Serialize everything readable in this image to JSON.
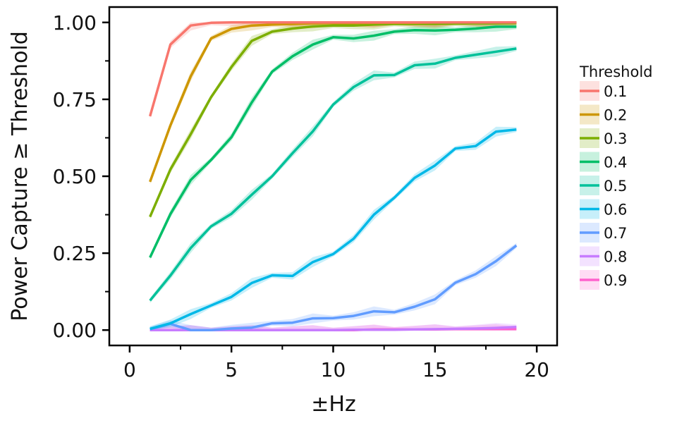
{
  "chart_data": {
    "type": "line",
    "title": "",
    "xlabel": "±Hz",
    "ylabel": "Power Capture  ≥  Threshold",
    "xlim": [
      -1,
      21
    ],
    "ylim": [
      -0.05,
      1.05
    ],
    "x_ticks": [
      0,
      5,
      10,
      15,
      20
    ],
    "x_tick_labels": [
      "0",
      "5",
      "10",
      "15",
      "20"
    ],
    "y_ticks": [
      0,
      0.25,
      0.5,
      0.75,
      1.0
    ],
    "y_tick_labels": [
      "0.00",
      "0.25",
      "0.50",
      "0.75",
      "1.00"
    ],
    "grid": false,
    "legend_title": "Threshold",
    "legend_position": "right",
    "x": [
      1,
      2,
      3,
      4,
      5,
      6,
      7,
      8,
      9,
      10,
      11,
      12,
      13,
      14,
      15,
      16,
      17,
      18,
      19
    ],
    "series": [
      {
        "name": "0.1",
        "color": "#f8766d",
        "values": [
          0.695,
          0.928,
          0.99,
          0.999,
          1.0,
          1.0,
          1.0,
          1.0,
          1.0,
          1.0,
          1.0,
          1.0,
          1.0,
          1.0,
          1.0,
          1.0,
          1.0,
          1.0,
          1.0
        ]
      },
      {
        "name": "0.2",
        "color": "#cd9600",
        "values": [
          0.482,
          0.665,
          0.825,
          0.948,
          0.979,
          0.99,
          0.993,
          0.995,
          0.997,
          0.998,
          0.998,
          0.999,
          0.999,
          0.999,
          1.0,
          1.0,
          1.0,
          1.0,
          1.0
        ]
      },
      {
        "name": "0.3",
        "color": "#7cae00",
        "values": [
          0.368,
          0.522,
          0.637,
          0.757,
          0.855,
          0.94,
          0.97,
          0.98,
          0.987,
          0.99,
          0.99,
          0.993,
          0.995,
          0.995,
          0.995,
          0.996,
          0.997,
          0.997,
          0.998
        ]
      },
      {
        "name": "0.4",
        "color": "#00be67",
        "values": [
          0.236,
          0.377,
          0.488,
          0.553,
          0.627,
          0.74,
          0.84,
          0.89,
          0.928,
          0.952,
          0.948,
          0.957,
          0.97,
          0.975,
          0.974,
          0.976,
          0.98,
          0.986,
          0.986
        ]
      },
      {
        "name": "0.5",
        "color": "#00c19a",
        "values": [
          0.096,
          0.177,
          0.267,
          0.337,
          0.378,
          0.44,
          0.5,
          0.575,
          0.646,
          0.733,
          0.79,
          0.828,
          0.829,
          0.861,
          0.866,
          0.885,
          0.895,
          0.905,
          0.915
        ]
      },
      {
        "name": "0.6",
        "color": "#00b8e7",
        "values": [
          0.004,
          0.022,
          0.052,
          0.08,
          0.108,
          0.153,
          0.178,
          0.176,
          0.221,
          0.247,
          0.297,
          0.375,
          0.43,
          0.495,
          0.535,
          0.59,
          0.598,
          0.645,
          0.652
        ]
      },
      {
        "name": "0.7",
        "color": "#619cff",
        "values": [
          0.003,
          0.02,
          0.0,
          0.0,
          0.005,
          0.008,
          0.022,
          0.024,
          0.038,
          0.039,
          0.046,
          0.061,
          0.058,
          0.076,
          0.1,
          0.154,
          0.182,
          0.224,
          0.275
        ]
      },
      {
        "name": "0.8",
        "color": "#c77cff",
        "values": [
          0.0,
          0.0,
          0.0,
          0.0,
          0.0,
          0.0,
          0.0,
          0.0,
          0.0,
          0.0,
          0.001,
          0.001,
          0.001,
          0.002,
          0.003,
          0.004,
          0.005,
          0.007,
          0.01
        ]
      },
      {
        "name": "0.9",
        "color": "#ff61cc",
        "values": [
          0.0,
          0.0,
          0.0,
          0.0,
          0.0,
          0.0,
          0.0,
          0.0,
          0.0,
          0.0,
          0.0,
          0.002,
          0.002,
          0.002,
          0.002,
          0.003,
          0.003,
          0.003,
          0.003
        ]
      }
    ]
  }
}
